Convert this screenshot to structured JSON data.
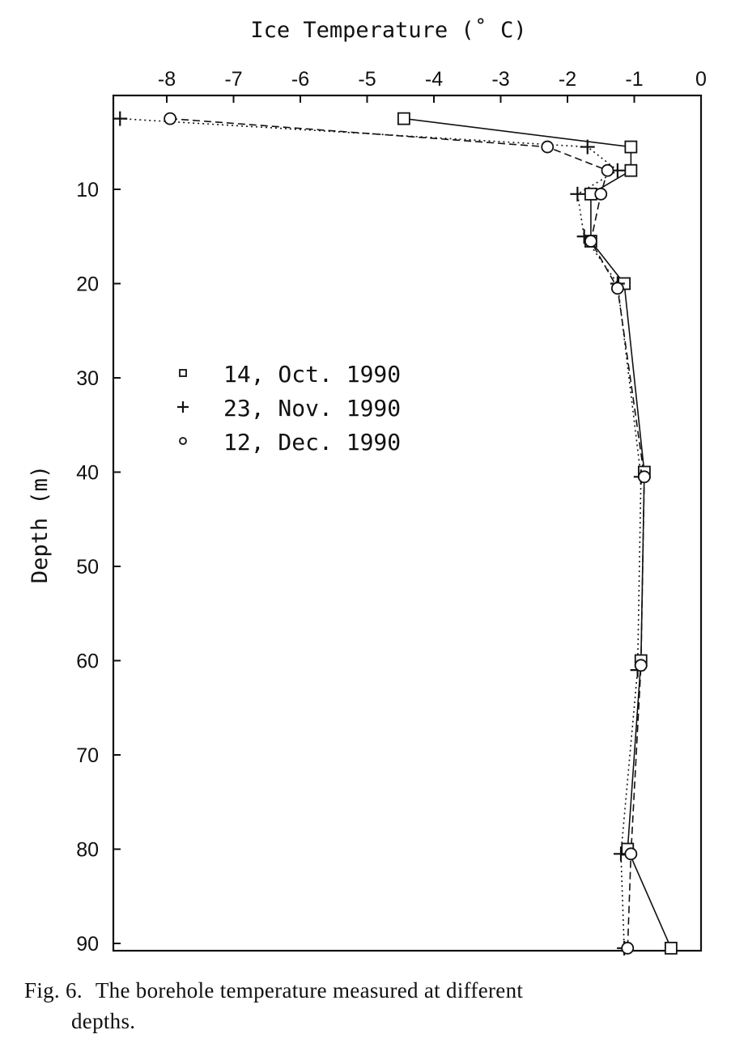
{
  "chart_data": {
    "type": "line",
    "title": "",
    "xlabel": "Ice Temperature (˚ C)",
    "ylabel": "Depth (m)",
    "xlim": [
      -8.8,
      0
    ],
    "ylim": [
      0,
      91
    ],
    "x_ticks": [
      "-8",
      "-7",
      "-6",
      "-5",
      "-4",
      "-3",
      "-2",
      "-1",
      "0"
    ],
    "x_tick_values": [
      -8,
      -7,
      -6,
      -5,
      -4,
      -3,
      -2,
      -1,
      0
    ],
    "y_ticks": [
      "10",
      "20",
      "30",
      "40",
      "50",
      "60",
      "70",
      "80",
      "90"
    ],
    "y_tick_values": [
      10,
      20,
      30,
      40,
      50,
      60,
      70,
      80,
      90
    ],
    "x_axis_position": "top",
    "y_axis_inverted": true,
    "grid": false,
    "legend_position": "upper-left",
    "series": [
      {
        "name": "14, Oct. 1990",
        "marker": "square",
        "line": "solid",
        "points": [
          {
            "t": -4.45,
            "d": 2.5
          },
          {
            "t": -1.05,
            "d": 5.5
          },
          {
            "t": -1.05,
            "d": 8.0
          },
          {
            "t": -1.65,
            "d": 10.5
          },
          {
            "t": -1.65,
            "d": 15.5
          },
          {
            "t": -1.15,
            "d": 20.0
          },
          {
            "t": -0.85,
            "d": 40.0
          },
          {
            "t": -0.9,
            "d": 60.0
          },
          {
            "t": -1.1,
            "d": 80.0
          },
          {
            "t": -0.45,
            "d": 90.5
          }
        ]
      },
      {
        "name": "23, Nov. 1990",
        "marker": "plus",
        "line": "dotted",
        "points": [
          {
            "t": -8.7,
            "d": 2.5
          },
          {
            "t": -1.7,
            "d": 5.5
          },
          {
            "t": -1.25,
            "d": 8.0
          },
          {
            "t": -1.85,
            "d": 10.5
          },
          {
            "t": -1.75,
            "d": 15.0
          },
          {
            "t": -1.25,
            "d": 20.0
          },
          {
            "t": -0.9,
            "d": 40.5
          },
          {
            "t": -0.95,
            "d": 61.0
          },
          {
            "t": -1.2,
            "d": 80.5
          },
          {
            "t": -1.15,
            "d": 90.5
          }
        ]
      },
      {
        "name": "12, Dec. 1990",
        "marker": "circle",
        "line": "dashed",
        "points": [
          {
            "t": -7.95,
            "d": 2.5
          },
          {
            "t": -2.3,
            "d": 5.5
          },
          {
            "t": -1.4,
            "d": 8.0
          },
          {
            "t": -1.5,
            "d": 10.5
          },
          {
            "t": -1.65,
            "d": 15.5
          },
          {
            "t": -1.25,
            "d": 20.5
          },
          {
            "t": -0.85,
            "d": 40.5
          },
          {
            "t": -0.9,
            "d": 60.5
          },
          {
            "t": -1.05,
            "d": 80.5
          },
          {
            "t": -1.1,
            "d": 90.5
          }
        ]
      }
    ]
  },
  "caption": {
    "number": "Fig. 6.",
    "text_line1": "The borehole temperature measured at different",
    "text_line2": "depths."
  }
}
